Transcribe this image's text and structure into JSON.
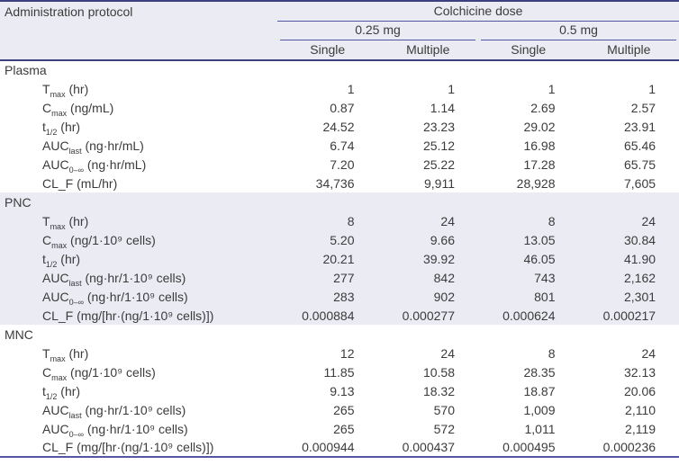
{
  "table": {
    "header": {
      "admin_protocol": "Administration protocol",
      "dose_group": "Colchicine dose",
      "dose_levels": [
        "0.25 mg",
        "0.5 mg"
      ],
      "dose_types": [
        "Single",
        "Multiple",
        "Single",
        "Multiple"
      ]
    },
    "sections": [
      {
        "name": "Plasma",
        "rows": [
          {
            "base": "T",
            "sub": "max",
            "unit": " (hr)",
            "values": [
              "1",
              "1",
              "1",
              "1"
            ]
          },
          {
            "base": "C",
            "sub": "max",
            "unit": " (ng/mL)",
            "values": [
              "0.87",
              "1.14",
              "2.69",
              "2.57"
            ]
          },
          {
            "base": "t",
            "sub": "1/2",
            "unit": " (hr)",
            "values": [
              "24.52",
              "23.23",
              "29.02",
              "23.91"
            ]
          },
          {
            "base": "AUC",
            "sub": "last",
            "unit": " (ng·hr/mL)",
            "values": [
              "6.74",
              "25.12",
              "16.98",
              "65.46"
            ]
          },
          {
            "base": "AUC",
            "sub": "0–∞",
            "unit": " (ng·hr/mL)",
            "values": [
              "7.20",
              "25.22",
              "17.28",
              "65.75"
            ]
          },
          {
            "base": "CL_F",
            "sub": "",
            "unit": " (mL/hr)",
            "values": [
              "34,736",
              "9,911",
              "28,928",
              "7,605"
            ]
          }
        ]
      },
      {
        "name": "PNC",
        "rows": [
          {
            "base": "T",
            "sub": "max",
            "unit": " (hr)",
            "values": [
              "8",
              "24",
              "8",
              "24"
            ]
          },
          {
            "base": "C",
            "sub": "max",
            "unit": " (ng/1·10⁹ cells)",
            "values": [
              "5.20",
              "9.66",
              "13.05",
              "30.84"
            ]
          },
          {
            "base": "t",
            "sub": "1/2",
            "unit": " (hr)",
            "values": [
              "20.21",
              "39.92",
              "46.05",
              "41.90"
            ]
          },
          {
            "base": "AUC",
            "sub": "last",
            "unit": " (ng·hr/1·10⁹ cells)",
            "values": [
              "277",
              "842",
              "743",
              "2,162"
            ]
          },
          {
            "base": "AUC",
            "sub": "0–∞",
            "unit": " (ng·hr/1·10⁹ cells)",
            "values": [
              "283",
              "902",
              "801",
              "2,301"
            ]
          },
          {
            "base": "CL_F",
            "sub": "",
            "unit": " (mg/[hr·(ng/1·10⁹ cells)])",
            "values": [
              "0.000884",
              "0.000277",
              "0.000624",
              "0.000217"
            ]
          }
        ]
      },
      {
        "name": "MNC",
        "rows": [
          {
            "base": "T",
            "sub": "max",
            "unit": " (hr)",
            "values": [
              "12",
              "24",
              "8",
              "24"
            ]
          },
          {
            "base": "C",
            "sub": "max",
            "unit": " (ng/1·10⁹ cells)",
            "values": [
              "11.85",
              "10.58",
              "28.35",
              "32.13"
            ]
          },
          {
            "base": "t",
            "sub": "1/2",
            "unit": " (hr)",
            "values": [
              "9.13",
              "18.32",
              "18.87",
              "20.06"
            ]
          },
          {
            "base": "AUC",
            "sub": "last",
            "unit": " (ng·hr/1·10⁹ cells)",
            "values": [
              "265",
              "570",
              "1,009",
              "2,110"
            ]
          },
          {
            "base": "AUC",
            "sub": "0–∞",
            "unit": " (ng·hr/1·10⁹ cells)",
            "values": [
              "265",
              "572",
              "1,011",
              "2,119"
            ]
          },
          {
            "base": "CL_F",
            "sub": "",
            "unit": " (mg/[hr·(ng/1·10⁹ cells)])",
            "values": [
              "0.000944",
              "0.000437",
              "0.000495",
              "0.000236"
            ]
          }
        ]
      }
    ],
    "colors": {
      "rule_line": "#5356a3",
      "heavy_rule": "#3d3f7e",
      "band_background": "#ebebf3",
      "text": "#3b3b3b"
    }
  }
}
